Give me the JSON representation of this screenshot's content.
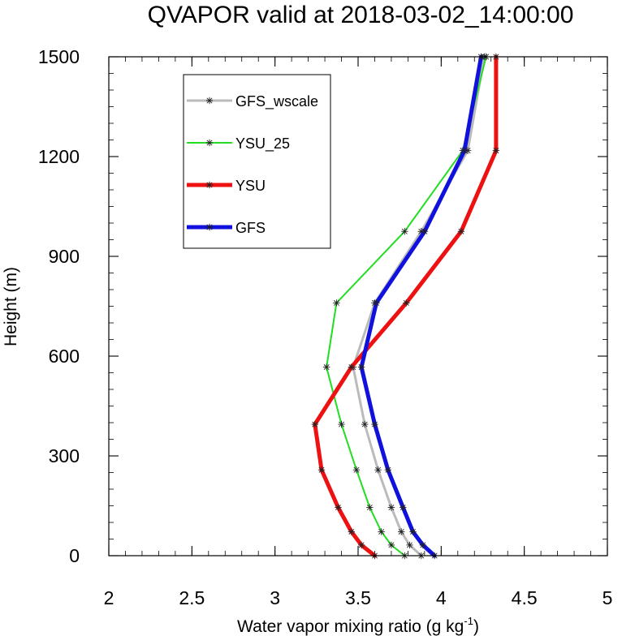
{
  "chart_data": {
    "type": "line",
    "title": "QVAPOR valid at 2018-03-02_14:00:00",
    "xlabel": "Water vapor mixing ratio (g kg",
    "xlabel_sup": "-1",
    "xlabel_end": ")",
    "ylabel": "Height (m)",
    "xlim": [
      2,
      5
    ],
    "ylim": [
      0,
      1500
    ],
    "xticks": [
      {
        "value": 2,
        "label": "2"
      },
      {
        "value": 2.5,
        "label": "2.5"
      },
      {
        "value": 3,
        "label": "3"
      },
      {
        "value": 3.5,
        "label": "3.5"
      },
      {
        "value": 4,
        "label": "4"
      },
      {
        "value": 4.5,
        "label": "4.5"
      },
      {
        "value": 5,
        "label": "5"
      }
    ],
    "yticks": [
      {
        "value": 0,
        "label": "0"
      },
      {
        "value": 300,
        "label": "300"
      },
      {
        "value": 600,
        "label": "600"
      },
      {
        "value": 900,
        "label": "900"
      },
      {
        "value": 1200,
        "label": "1200"
      },
      {
        "value": 1500,
        "label": "1500"
      }
    ],
    "grid": false,
    "legend_position": "top-left",
    "series": [
      {
        "name": "GFS_wscale",
        "color": "#bbbbbb",
        "points": [
          {
            "x": 3.88,
            "y": 0
          },
          {
            "x": 3.81,
            "y": 32
          },
          {
            "x": 3.76,
            "y": 72
          },
          {
            "x": 3.7,
            "y": 145
          },
          {
            "x": 3.62,
            "y": 258
          },
          {
            "x": 3.54,
            "y": 395
          },
          {
            "x": 3.47,
            "y": 567
          },
          {
            "x": 3.6,
            "y": 760
          },
          {
            "x": 3.88,
            "y": 975
          },
          {
            "x": 4.16,
            "y": 1218
          },
          {
            "x": 4.26,
            "y": 1500
          }
        ]
      },
      {
        "name": "YSU_25",
        "color": "#22dd22",
        "points": [
          {
            "x": 3.78,
            "y": 0
          },
          {
            "x": 3.7,
            "y": 32
          },
          {
            "x": 3.64,
            "y": 72
          },
          {
            "x": 3.57,
            "y": 145
          },
          {
            "x": 3.49,
            "y": 258
          },
          {
            "x": 3.4,
            "y": 395
          },
          {
            "x": 3.31,
            "y": 567
          },
          {
            "x": 3.37,
            "y": 760
          },
          {
            "x": 3.78,
            "y": 975
          },
          {
            "x": 4.13,
            "y": 1218
          },
          {
            "x": 4.27,
            "y": 1500
          }
        ]
      },
      {
        "name": "YSU",
        "color": "#ee1111",
        "points": [
          {
            "x": 3.6,
            "y": 0
          },
          {
            "x": 3.52,
            "y": 32
          },
          {
            "x": 3.46,
            "y": 72
          },
          {
            "x": 3.38,
            "y": 145
          },
          {
            "x": 3.28,
            "y": 258
          },
          {
            "x": 3.24,
            "y": 395
          },
          {
            "x": 3.46,
            "y": 567
          },
          {
            "x": 3.79,
            "y": 760
          },
          {
            "x": 4.12,
            "y": 975
          },
          {
            "x": 4.33,
            "y": 1218
          },
          {
            "x": 4.33,
            "y": 1500
          }
        ]
      },
      {
        "name": "GFS",
        "color": "#1111dd",
        "points": [
          {
            "x": 3.96,
            "y": 0
          },
          {
            "x": 3.89,
            "y": 32
          },
          {
            "x": 3.83,
            "y": 72
          },
          {
            "x": 3.77,
            "y": 145
          },
          {
            "x": 3.68,
            "y": 258
          },
          {
            "x": 3.6,
            "y": 395
          },
          {
            "x": 3.52,
            "y": 567
          },
          {
            "x": 3.61,
            "y": 760
          },
          {
            "x": 3.9,
            "y": 975
          },
          {
            "x": 4.14,
            "y": 1218
          },
          {
            "x": 4.24,
            "y": 1500
          }
        ]
      }
    ]
  }
}
